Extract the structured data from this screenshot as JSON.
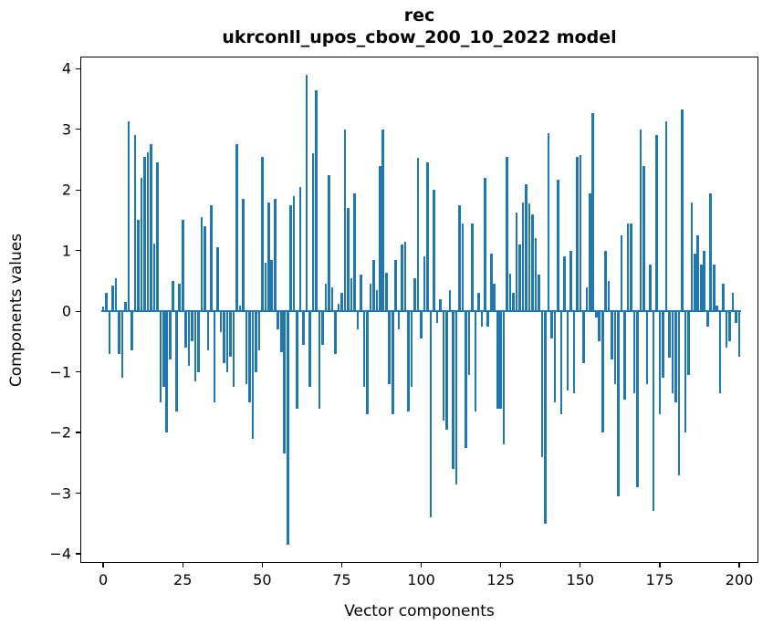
{
  "chart_data": {
    "type": "bar",
    "title": "rec",
    "subtitle": "ukrconll_upos_cbow_200_10_2022 model",
    "xlabel": "Vector components",
    "ylabel": "Components values",
    "legend": "none",
    "grid": false,
    "bar_color": "#1f77b4",
    "xlim": [
      -7.2,
      206.0
    ],
    "ylim": [
      -4.15,
      4.2
    ],
    "xticks": [
      0,
      25,
      50,
      75,
      100,
      125,
      150,
      175,
      200
    ],
    "xtick_labels": [
      "0",
      "25",
      "50",
      "75",
      "100",
      "125",
      "150",
      "175",
      "200"
    ],
    "yticks": [
      4,
      3,
      2,
      1,
      0,
      -1,
      -2,
      -3,
      -4
    ],
    "ytick_labels": [
      "4",
      "3",
      "2",
      "1",
      "0",
      "−1",
      "−2",
      "−3",
      "−4"
    ],
    "x_description": "component index 0..200",
    "values": [
      0.08,
      0.3,
      -0.7,
      0.42,
      0.55,
      -0.7,
      -1.1,
      0.15,
      3.13,
      -0.65,
      2.9,
      1.5,
      2.2,
      2.55,
      2.62,
      2.75,
      1.12,
      2.45,
      -1.5,
      -1.25,
      -2.0,
      -0.8,
      0.5,
      -1.65,
      0.45,
      1.5,
      -0.6,
      -0.9,
      -0.5,
      -1.15,
      -1.0,
      1.55,
      1.4,
      -0.65,
      1.75,
      -1.5,
      1.05,
      -0.35,
      -0.85,
      -1.0,
      -0.75,
      -1.25,
      2.75,
      0.1,
      1.85,
      -1.2,
      -1.5,
      -2.1,
      -1.0,
      -0.65,
      2.55,
      0.8,
      1.8,
      0.85,
      1.85,
      -0.3,
      -0.68,
      -2.35,
      -3.85,
      1.75,
      1.9,
      -1.6,
      2.05,
      -0.55,
      3.9,
      -1.25,
      2.6,
      3.65,
      -1.6,
      -0.55,
      0.45,
      2.25,
      0.4,
      -0.7,
      0.12,
      0.3,
      3.0,
      1.7,
      0.55,
      1.95,
      -0.3,
      0.6,
      -1.25,
      -1.7,
      0.45,
      0.85,
      0.35,
      2.4,
      3.0,
      0.63,
      -1.2,
      -1.7,
      0.85,
      -0.3,
      1.1,
      1.15,
      -1.65,
      -1.25,
      0.55,
      2.53,
      -0.45,
      0.9,
      2.45,
      -3.4,
      2.0,
      -0.2,
      0.2,
      -1.8,
      -1.95,
      0.35,
      -2.6,
      -2.85,
      1.75,
      1.45,
      -2.25,
      -1.05,
      1.45,
      -1.65,
      0.3,
      -0.25,
      2.2,
      -0.25,
      0.95,
      0.45,
      -1.6,
      -1.6,
      -2.2,
      2.55,
      0.62,
      0.3,
      1.62,
      1.1,
      1.8,
      2.1,
      1.78,
      1.6,
      1.2,
      0.6,
      -2.4,
      -3.5,
      2.93,
      -0.45,
      -1.5,
      2.17,
      -1.7,
      0.9,
      -1.3,
      1.0,
      -1.35,
      2.55,
      2.57,
      -0.85,
      0.4,
      1.95,
      3.27,
      -0.1,
      -0.5,
      -2.0,
      1.0,
      0.5,
      -0.8,
      -1.2,
      -3.05,
      1.25,
      -1.45,
      1.45,
      1.45,
      -1.35,
      -2.9,
      3.0,
      2.4,
      -1.2,
      0.77,
      -3.3,
      2.9,
      -1.7,
      -1.1,
      3.13,
      -0.76,
      -1.35,
      -1.5,
      -2.7,
      3.32,
      -2.0,
      -1.05,
      1.8,
      0.95,
      1.25,
      0.77,
      1.0,
      -0.26,
      1.95,
      0.77,
      0.1,
      -1.35,
      0.45,
      -0.6,
      -0.5,
      0.3,
      -0.2,
      -0.75
    ]
  }
}
